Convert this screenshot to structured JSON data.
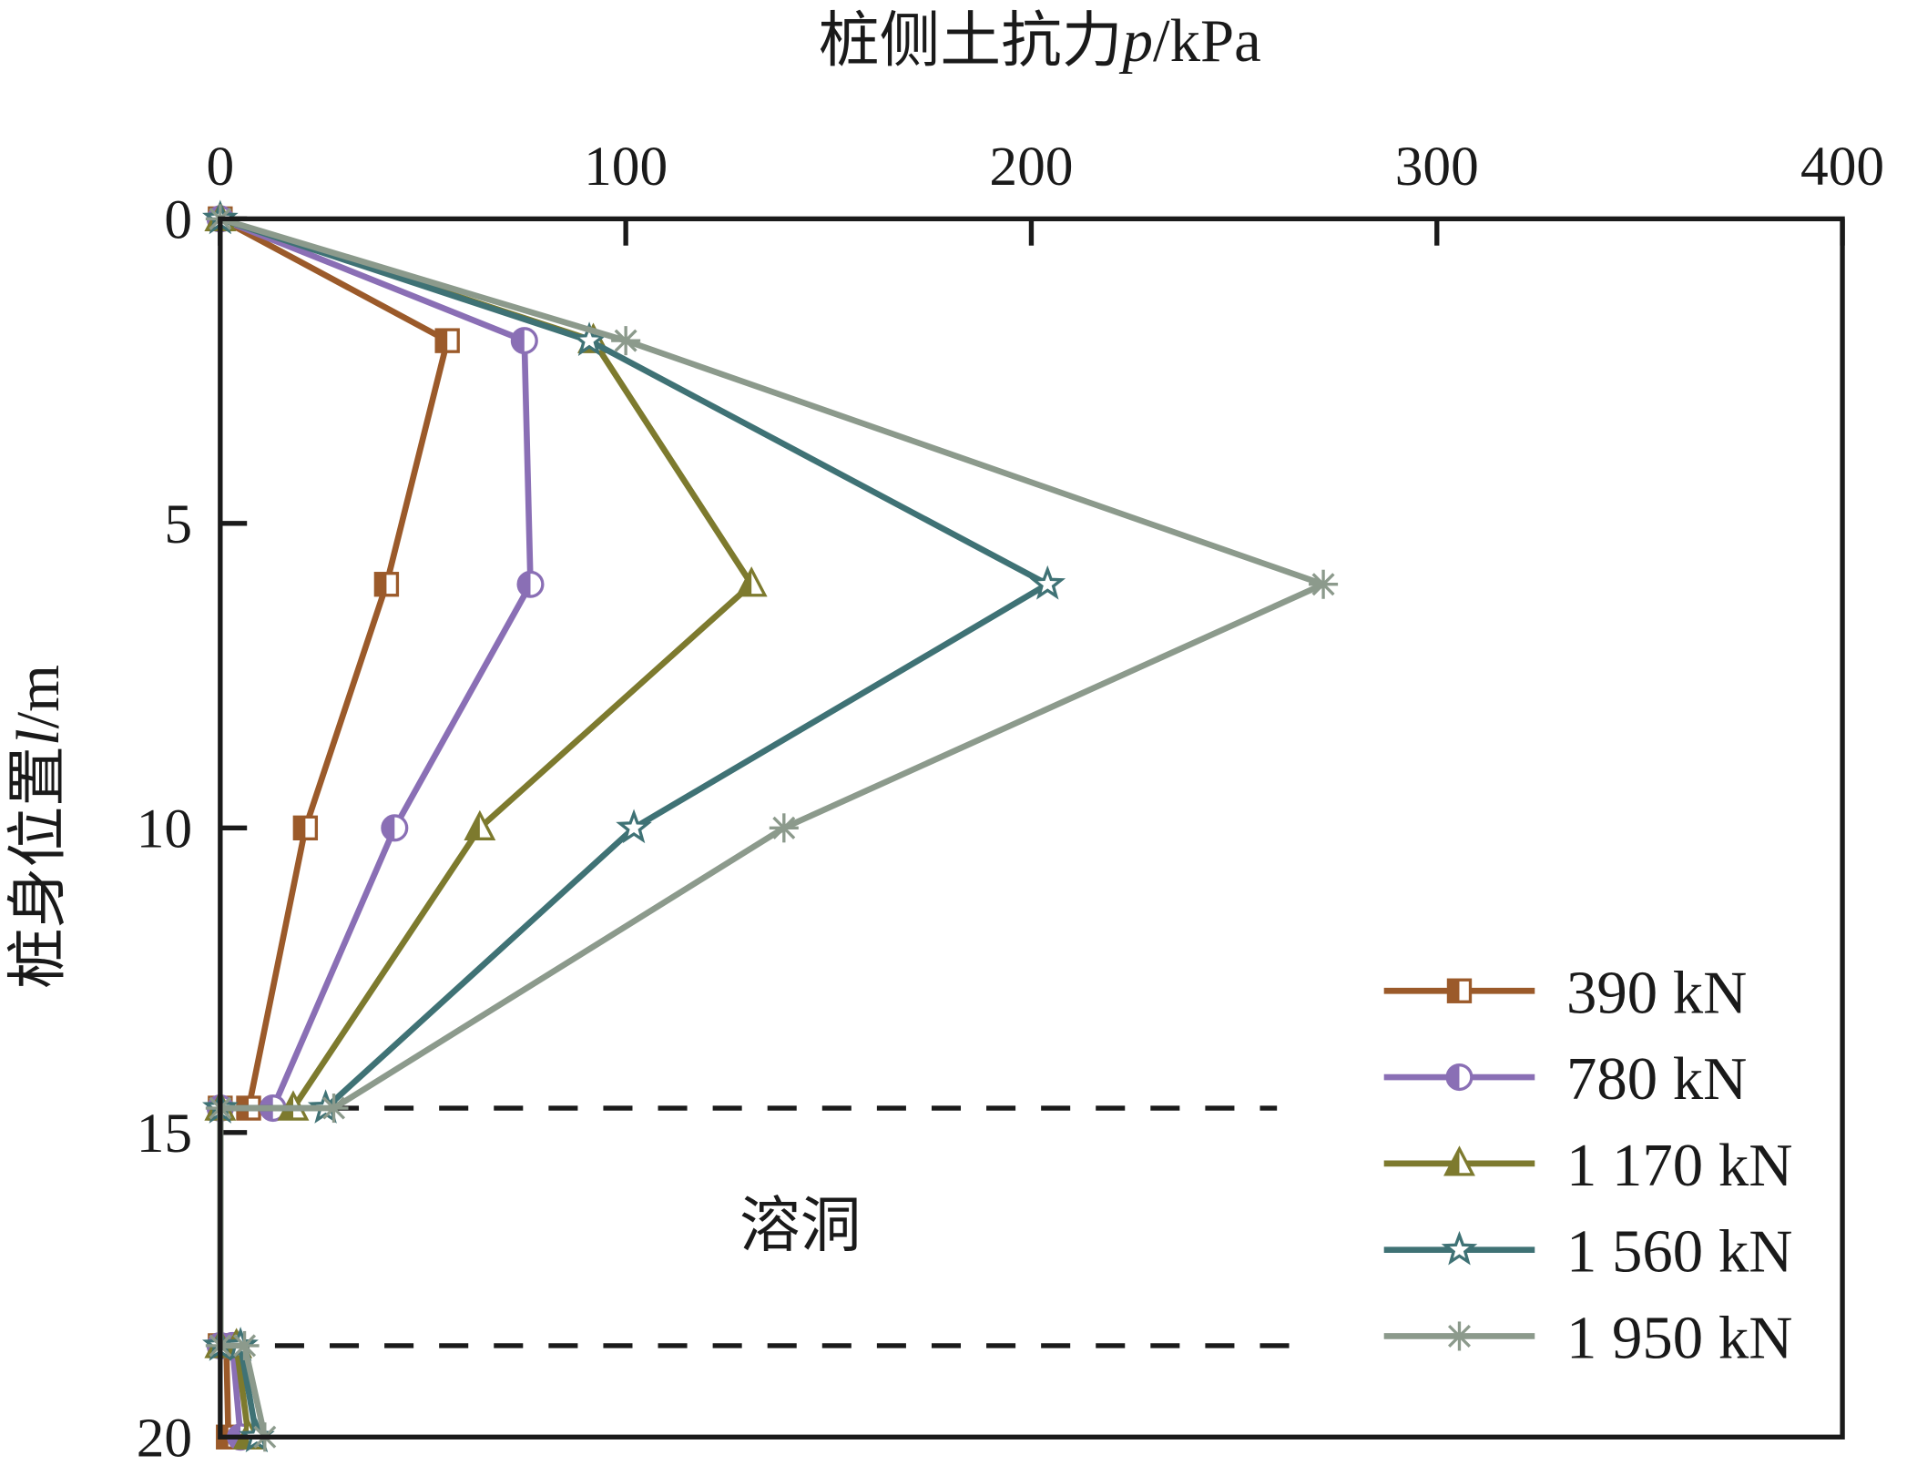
{
  "chart_data": {
    "type": "line",
    "title": "",
    "xlabel": "桩侧土抗力p/kPa",
    "xlabel_parts": {
      "main": "桩侧土抗力",
      "var": "p",
      "unit": "/kPa"
    },
    "ylabel": "桩身位置l/m",
    "ylabel_parts": {
      "main": "桩身位置",
      "var": "l",
      "unit": "/m"
    },
    "xlim": [
      0,
      400
    ],
    "ylim": [
      0,
      20
    ],
    "y_inverted": true,
    "x_axis_position": "top",
    "xticks": [
      "0",
      "100",
      "200",
      "300",
      "400"
    ],
    "xtick_values": [
      0,
      100,
      200,
      300,
      400
    ],
    "yticks": [
      "0",
      "5",
      "10",
      "15",
      "20"
    ],
    "ytick_values": [
      0,
      5,
      10,
      15,
      20
    ],
    "legend_position": "bottom-right",
    "annotation": {
      "text": "溶洞",
      "depth": 16.5,
      "x": 143
    },
    "cave_boundaries": [
      14.6,
      18.5
    ],
    "series": [
      {
        "name": "390 kN",
        "color": "#9b5a2a",
        "marker": "half-square",
        "depth": [
          0,
          2,
          6,
          10,
          14.6,
          14.6,
          18.5,
          18.5,
          20
        ],
        "p": [
          0,
          56,
          41,
          21,
          7,
          0,
          0,
          1.5,
          2
        ]
      },
      {
        "name": "780 kN",
        "color": "#8a6fb5",
        "marker": "half-circle",
        "depth": [
          0,
          2,
          6,
          10,
          14.6,
          14.6,
          18.5,
          18.5,
          20
        ],
        "p": [
          0,
          75,
          76.5,
          43,
          13,
          0,
          0,
          3,
          5
        ]
      },
      {
        "name": "1 170 kN",
        "color": "#7d7a2e",
        "marker": "half-triangle",
        "depth": [
          0,
          2,
          6,
          10,
          14.6,
          14.6,
          18.5,
          18.5,
          20
        ],
        "p": [
          0,
          92,
          131,
          64,
          18,
          0,
          0,
          4,
          7
        ]
      },
      {
        "name": "1 560 kN",
        "color": "#3f7275",
        "marker": "star",
        "depth": [
          0,
          2,
          6,
          10,
          14.6,
          14.6,
          18.5,
          18.5,
          20
        ],
        "p": [
          0,
          91,
          204,
          102,
          26,
          0,
          0,
          5,
          9
        ]
      },
      {
        "name": "1 950 kN",
        "color": "#8c9a8c",
        "marker": "asterisk",
        "depth": [
          0,
          2,
          6,
          10,
          14.6,
          14.6,
          18.5,
          18.5,
          20
        ],
        "p": [
          0,
          100,
          272,
          139,
          28,
          0,
          0,
          6,
          11
        ]
      }
    ]
  }
}
